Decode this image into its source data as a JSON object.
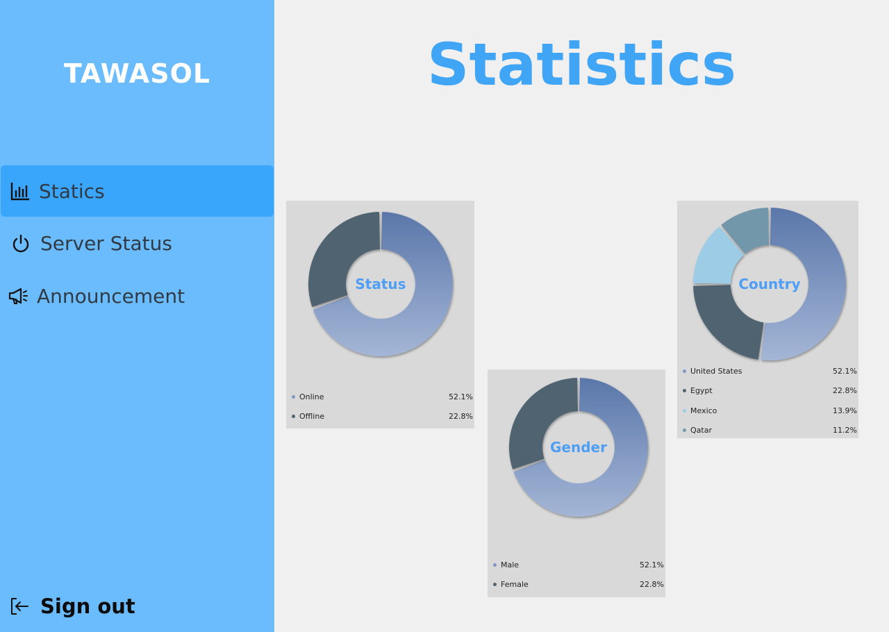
{
  "app": {
    "logo": "TAWASOL"
  },
  "sidebar": {
    "items": [
      {
        "label": "Statics",
        "icon": "bar-chart-icon",
        "active": true
      },
      {
        "label": "Server Status",
        "icon": "power-icon",
        "active": false
      },
      {
        "label": "Announcement",
        "icon": "megaphone-icon",
        "active": false
      }
    ],
    "signout": {
      "label": "Sign out",
      "icon": "sign-out-icon"
    }
  },
  "main": {
    "title": "Statistics"
  },
  "colors": {
    "sidebar": "#6bbcfc",
    "active_item": "#3aa6fb",
    "title": "#40a5f4",
    "card": "#d9d9d9",
    "slice_blue_dark": "#5a77aa",
    "slice_blue_light": "#a4b6d6",
    "slice_slate": "#4f6370",
    "slice_sky": "#9dcde6",
    "slice_steel": "#7397aa"
  },
  "cards": {
    "status": {
      "center_label": "Status",
      "legend": [
        {
          "name": "Online",
          "value": "52.1%"
        },
        {
          "name": "Offline",
          "value": "22.8%"
        }
      ]
    },
    "gender": {
      "center_label": "Gender",
      "legend": [
        {
          "name": "Male",
          "value": "52.1%"
        },
        {
          "name": "Female",
          "value": "22.8%"
        }
      ]
    },
    "country": {
      "center_label": "Country",
      "legend": [
        {
          "name": "United States",
          "value": "52.1%"
        },
        {
          "name": "Egypt",
          "value": "22.8%"
        },
        {
          "name": "Mexico",
          "value": "13.9%"
        },
        {
          "name": "Qatar",
          "value": "11.2%"
        }
      ]
    }
  },
  "chart_data": [
    {
      "type": "pie",
      "title": "Status",
      "categories": [
        "Online",
        "Offline"
      ],
      "values": [
        52.1,
        22.8
      ]
    },
    {
      "type": "pie",
      "title": "Gender",
      "categories": [
        "Male",
        "Female"
      ],
      "values": [
        52.1,
        22.8
      ]
    },
    {
      "type": "pie",
      "title": "Country",
      "categories": [
        "United States",
        "Egypt",
        "Mexico",
        "Qatar"
      ],
      "values": [
        52.1,
        22.8,
        13.9,
        11.2
      ]
    }
  ]
}
